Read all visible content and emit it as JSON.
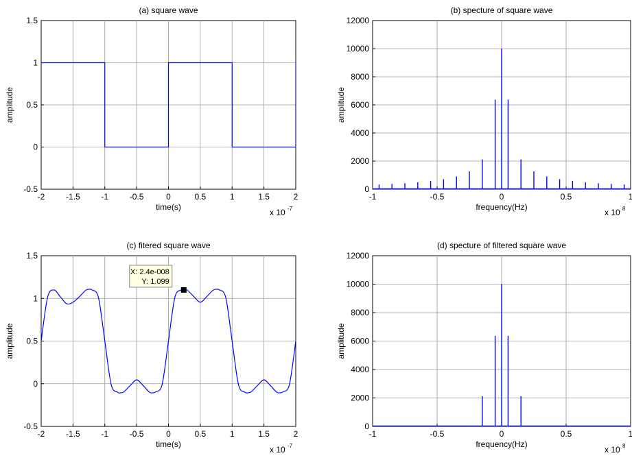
{
  "figure": {
    "background": "#ffffff",
    "grid_color": "#9a9a9a",
    "line_color": "#0000ff"
  },
  "chart_data": [
    {
      "id": "a",
      "type": "line",
      "title": "(a) square wave",
      "xlabel": "time(s)",
      "ylabel": "amplitude",
      "x_exponent_base": "x 10",
      "x_exponent_power": "-7",
      "xlim": [
        -2,
        2
      ],
      "ylim": [
        -0.5,
        1.5
      ],
      "xticks": [
        -2,
        -1.5,
        -1,
        -0.5,
        0,
        0.5,
        1,
        1.5,
        2
      ],
      "xtick_labels": [
        "-2",
        "-1.5",
        "-1",
        "-0.5",
        "0",
        "0.5",
        "1",
        "1.5",
        "2"
      ],
      "yticks": [
        -0.5,
        0,
        0.5,
        1,
        1.5
      ],
      "ytick_labels": [
        "-0.5",
        "0",
        "0.5",
        "1",
        "1.5"
      ],
      "grid": true,
      "series": [
        {
          "x": [
            -2,
            -1,
            -1,
            0,
            0,
            1,
            1,
            2,
            2
          ],
          "y": [
            1,
            1,
            0,
            0,
            1,
            1,
            0,
            0,
            1
          ]
        }
      ]
    },
    {
      "id": "b",
      "type": "stem",
      "title": "(b) specture of square wave",
      "xlabel": "frequency(Hz)",
      "ylabel": "amplitude",
      "x_exponent_base": "x 10",
      "x_exponent_power": "8",
      "xlim": [
        -1,
        1
      ],
      "ylim": [
        0,
        12000
      ],
      "xticks": [
        -1,
        -0.5,
        0,
        0.5,
        1
      ],
      "xtick_labels": [
        "-1",
        "-0.5",
        "0",
        "0.5",
        "1"
      ],
      "yticks": [
        0,
        2000,
        4000,
        6000,
        8000,
        10000,
        12000
      ],
      "ytick_labels": [
        "0",
        "2000",
        "4000",
        "6000",
        "8000",
        "10000",
        "12000"
      ],
      "grid": true,
      "stems": {
        "x": [
          -0.95,
          -0.85,
          -0.75,
          -0.65,
          -0.55,
          -0.45,
          -0.35,
          -0.25,
          -0.15,
          -0.05,
          0,
          0.05,
          0.15,
          0.25,
          0.35,
          0.45,
          0.55,
          0.65,
          0.75,
          0.85,
          0.95
        ],
        "y": [
          335,
          375,
          425,
          490,
          580,
          710,
          910,
          1270,
          2120,
          6370,
          10000,
          6370,
          2120,
          1270,
          910,
          710,
          580,
          490,
          425,
          375,
          335
        ]
      }
    },
    {
      "id": "c",
      "type": "line",
      "title": "(c) fitered square wave",
      "xlabel": "time(s)",
      "ylabel": "amplitude",
      "x_exponent_base": "x 10",
      "x_exponent_power": "-7",
      "xlim": [
        -2,
        2
      ],
      "ylim": [
        -0.5,
        1.5
      ],
      "xticks": [
        -2,
        -1.5,
        -1,
        -0.5,
        0,
        0.5,
        1,
        1.5,
        2
      ],
      "xtick_labels": [
        "-2",
        "-1.5",
        "-1",
        "-0.5",
        "0",
        "0.5",
        "1",
        "1.5",
        "2"
      ],
      "yticks": [
        -0.5,
        0,
        0.5,
        1,
        1.5
      ],
      "ytick_labels": [
        "-0.5",
        "0",
        "0.5",
        "1",
        "1.5"
      ],
      "grid": true,
      "series": [
        {
          "x": [
            -2,
            -1.9,
            -1.8,
            -1.7,
            -1.6,
            -1.5,
            -1.4,
            -1.3,
            -1.25,
            -1.2,
            -1.1,
            -1,
            -0.9,
            -0.8,
            -0.75,
            -0.7,
            -0.6,
            -0.5,
            -0.4,
            -0.3,
            -0.25,
            -0.2,
            -0.1,
            0,
            0.1,
            0.2,
            0.25,
            0.3,
            0.4,
            0.5,
            0.6,
            0.7,
            0.75,
            0.8,
            0.9,
            1,
            1.1,
            1.2,
            1.25,
            1.3,
            1.4,
            1.5,
            1.6,
            1.7,
            1.75,
            1.8,
            1.9,
            2
          ],
          "y": [
            0.5,
            1.01,
            1.099,
            1.02,
            0.937,
            0.955,
            1.02,
            1.095,
            1.106,
            1.099,
            1.01,
            0.5,
            -0.01,
            -0.099,
            -0.106,
            -0.095,
            -0.02,
            0.045,
            -0.02,
            -0.099,
            -0.106,
            -0.095,
            -0.01,
            0.5,
            1.01,
            1.099,
            1.106,
            1.095,
            1.02,
            0.955,
            1.02,
            1.095,
            1.106,
            1.099,
            1.01,
            0.5,
            -0.01,
            -0.099,
            -0.106,
            -0.095,
            -0.02,
            0.045,
            -0.02,
            -0.099,
            -0.106,
            -0.095,
            -0.01,
            0.5
          ]
        }
      ],
      "annotation": {
        "x": 0.24,
        "y": 1.099,
        "line1": "X: 2.4e-008",
        "line2": "Y: 1.099"
      }
    },
    {
      "id": "d",
      "type": "stem",
      "title": "(d) specture of filtered square wave",
      "xlabel": "frequency(Hz)",
      "ylabel": "amplitude",
      "x_exponent_base": "x 10",
      "x_exponent_power": "8",
      "xlim": [
        -1,
        1
      ],
      "ylim": [
        0,
        12000
      ],
      "xticks": [
        -1,
        -0.5,
        0,
        0.5,
        1
      ],
      "xtick_labels": [
        "-1",
        "-0.5",
        "0",
        "0.5",
        "1"
      ],
      "yticks": [
        0,
        2000,
        4000,
        6000,
        8000,
        10000,
        12000
      ],
      "ytick_labels": [
        "0",
        "2000",
        "4000",
        "6000",
        "8000",
        "10000",
        "12000"
      ],
      "grid": true,
      "stems": {
        "x": [
          -0.15,
          -0.05,
          0,
          0.05,
          0.15
        ],
        "y": [
          2120,
          6370,
          10000,
          6370,
          2120
        ]
      }
    }
  ]
}
